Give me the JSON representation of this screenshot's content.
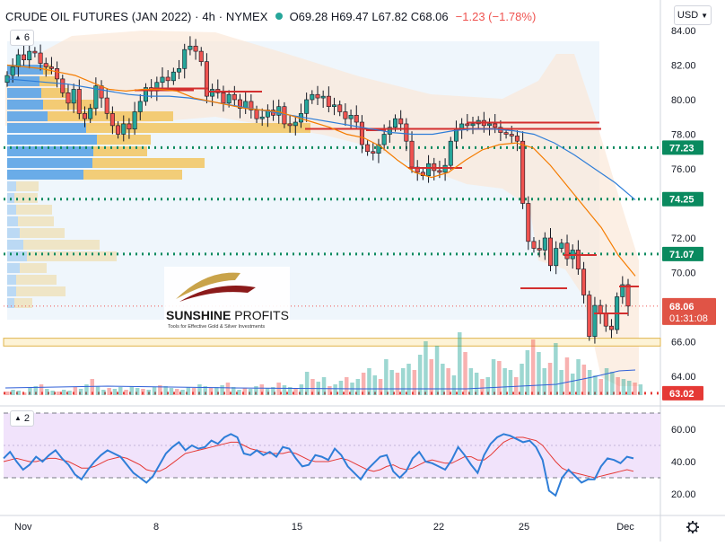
{
  "header": {
    "symbol": "CRUDE OIL FUTURES (JAN 2022) · 4h · NYMEX",
    "ohlc": "O69.28  H69.47  L67.82  C68.06",
    "change": "−1.23 (−1.78%)"
  },
  "currency": "USD",
  "main_indicator_count": "6",
  "rsi_indicator_count": "2",
  "logo": {
    "brand_bold": "SUNSHINE",
    "brand_light": "PROFITS",
    "tagline": "Tools for Effective Gold & Silver Investments"
  },
  "price_tags": {
    "last_price": "68.06",
    "countdown": "01:31:08"
  },
  "colors": {
    "bull": "#26a69a",
    "bear": "#ef5350",
    "level_line": "#0a8a5f",
    "rsi_line": "#2f7ed8",
    "rsi_ma": "#e53935",
    "sma_fast": "#f57c00",
    "sma_slow": "#2f7ed8",
    "rsi_band": "#f1e3fb",
    "volume_profile": "#f2c660",
    "volume_profile_blue": "#5ba4e6"
  },
  "chart_data": [
    {
      "type": "candlestick",
      "title": "CRUDE OIL FUTURES (JAN 2022)",
      "timeframe": "4h",
      "exchange": "NYMEX",
      "y_ticks": [
        84.0,
        82.0,
        80.0,
        78.0,
        76.0,
        72.0,
        70.0,
        66.0,
        64.0
      ],
      "x_ticks": [
        "Nov",
        "8",
        "15",
        "22",
        "25",
        "Dec"
      ],
      "ylim": [
        62.0,
        84.8
      ],
      "horizontal_levels": [
        {
          "label": "77.23",
          "value": 77.23,
          "style": "dotted",
          "color": "#0a8a5f"
        },
        {
          "label": "74.25",
          "value": 74.25,
          "style": "dotted",
          "color": "#0a8a5f"
        },
        {
          "label": "71.07",
          "value": 71.07,
          "style": "dotted",
          "color": "#0a8a5f"
        },
        {
          "label": "63.02",
          "value": 63.02,
          "style": "dotted",
          "color": "#e53935"
        }
      ],
      "support_zone": [
        65.75,
        66.2
      ],
      "closes": [
        81.4,
        81.9,
        82.6,
        82.3,
        82.8,
        82.7,
        82.1,
        81.9,
        81.8,
        81.2,
        80.4,
        79.8,
        80.6,
        79.2,
        78.9,
        79.5,
        80.8,
        80.1,
        79.2,
        78.5,
        78.0,
        78.6,
        78.3,
        79.3,
        79.9,
        80.7,
        80.5,
        81.0,
        81.3,
        81.1,
        81.6,
        81.8,
        82.9,
        83.1,
        82.8,
        82.2,
        80.2,
        80.6,
        80.4,
        79.8,
        80.3,
        80.0,
        79.5,
        79.9,
        79.4,
        78.9,
        79.0,
        79.4,
        79.1,
        79.6,
        78.6,
        78.5,
        78.7,
        79.2,
        80.0,
        80.3,
        80.1,
        80.2,
        79.6,
        79.7,
        79.3,
        78.9,
        79.1,
        78.7,
        77.4,
        77.0,
        76.9,
        77.4,
        78.0,
        78.4,
        78.9,
        78.6,
        77.6,
        76.1,
        75.8,
        75.6,
        76.3,
        75.9,
        75.8,
        76.2,
        77.6,
        78.3,
        78.6,
        78.5,
        78.6,
        78.8,
        78.5,
        78.6,
        78.4,
        78.1,
        78.0,
        77.9,
        77.6,
        74.0,
        71.8,
        71.4,
        71.3,
        72.0,
        70.4,
        71.4,
        71.7,
        70.8,
        71.3,
        70.2,
        68.7,
        66.3,
        68.1,
        67.6,
        66.9,
        66.7,
        68.6,
        69.3,
        68.06
      ],
      "sma_fast": [
        82.0,
        81.9,
        81.8,
        81.6,
        81.4,
        81.0,
        80.6,
        80.5,
        80.6,
        80.6,
        80.5,
        80.1,
        79.9,
        79.7,
        79.5,
        79.4,
        79.3,
        79.0,
        78.7,
        78.4,
        78.0,
        77.8,
        77.3,
        76.5,
        75.8,
        75.5,
        75.8,
        76.5,
        77.1,
        77.4,
        77.5,
        77.2,
        76.2,
        75.0,
        73.8,
        72.6,
        71.0,
        69.8
      ],
      "sma_slow": [
        81.2,
        81.1,
        81.0,
        80.9,
        80.7,
        80.5,
        80.3,
        80.2,
        80.2,
        80.1,
        79.9,
        79.7,
        79.5,
        79.3,
        79.1,
        78.9,
        78.7,
        78.5,
        78.3,
        78.1,
        78.0,
        78.0,
        78.2,
        78.3,
        78.3,
        78.2,
        78.0,
        77.5,
        76.8,
        76.0,
        75.2,
        74.2
      ]
    },
    {
      "type": "line",
      "title": "RSI",
      "y_ticks": [
        60.0,
        40.0,
        20.0
      ],
      "ylim": [
        13,
        75
      ],
      "bands": [
        30,
        70
      ],
      "rsi": [
        42,
        46,
        40,
        35,
        38,
        43,
        40,
        44,
        47,
        42,
        38,
        32,
        29,
        35,
        40,
        44,
        47,
        45,
        43,
        38,
        33,
        30,
        27,
        31,
        38,
        45,
        49,
        52,
        47,
        50,
        48,
        49,
        53,
        51,
        55,
        57,
        55,
        45,
        44,
        47,
        44,
        46,
        43,
        49,
        48,
        42,
        37,
        38,
        44,
        43,
        41,
        48,
        44,
        37,
        33,
        29,
        35,
        39,
        43,
        44,
        34,
        30,
        34,
        42,
        46,
        40,
        39,
        37,
        35,
        41,
        49,
        44,
        38,
        33,
        44,
        51,
        55,
        57,
        56,
        54,
        52,
        53,
        49,
        41,
        22,
        19,
        30,
        35,
        31,
        27,
        29,
        29,
        37,
        42,
        41,
        39,
        43,
        42
      ],
      "rsi_ma": [
        40,
        41,
        42,
        41,
        40,
        40,
        41,
        42,
        42,
        41,
        40,
        38,
        36,
        36,
        37,
        39,
        41,
        42,
        43,
        42,
        40,
        38,
        35,
        34,
        34,
        36,
        39,
        42,
        45,
        46,
        47,
        48,
        49,
        50,
        51,
        52,
        52,
        50,
        48,
        47,
        46,
        45,
        45,
        45,
        46,
        45,
        43,
        41,
        40,
        40,
        40,
        41,
        42,
        41,
        39,
        37,
        35,
        34,
        35,
        37,
        38,
        36,
        35,
        36,
        38,
        40,
        41,
        40,
        39,
        39,
        41,
        43,
        43,
        41,
        41,
        44,
        48,
        52,
        54,
        55,
        55,
        54,
        53,
        50,
        45,
        40,
        36,
        34,
        33,
        32,
        31,
        30,
        31,
        32,
        33,
        34,
        35,
        34
      ]
    }
  ]
}
